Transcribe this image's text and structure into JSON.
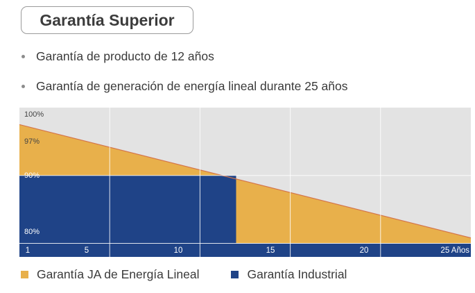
{
  "title": "Garantía Superior",
  "bullets": [
    "Garantía de producto de 12 años",
    "Garantía de generación de energía lineal durante 25 años"
  ],
  "colors": {
    "linear": "#E8B04B",
    "industrial": "#1F4387",
    "background": "#E3E3E3",
    "grid": "#FFFFFF",
    "bullet": "#8C8C8C"
  },
  "legend": [
    {
      "label": "Garantía JA de Energía Lineal",
      "color": "#E8B04B"
    },
    {
      "label": "Garantía Industrial",
      "color": "#1F4387"
    }
  ],
  "chart_data": {
    "type": "area",
    "title": "",
    "xlabel": "",
    "ylabel": "",
    "xlim": [
      0,
      25
    ],
    "ylim": [
      78,
      100
    ],
    "grid": true,
    "legend_position": "bottom",
    "x_ticks": [
      {
        "value": 1,
        "label": "1"
      },
      {
        "value": 5,
        "label": "5"
      },
      {
        "value": 10,
        "label": "10"
      },
      {
        "value": 15,
        "label": "15"
      },
      {
        "value": 20,
        "label": "20"
      },
      {
        "value": 25,
        "label": "25 Años"
      }
    ],
    "y_ticks": [
      {
        "value": 100,
        "label": "100%"
      },
      {
        "value": 97,
        "label": "97%"
      },
      {
        "value": 90,
        "label": "90%"
      },
      {
        "value": 80,
        "label": "80%"
      }
    ],
    "series": [
      {
        "name": "Garantía JA de Energía Lineal",
        "x": [
          0,
          25
        ],
        "values": [
          97.5,
          80.8
        ]
      },
      {
        "name": "Garantía Industrial",
        "x": [
          0,
          12,
          12,
          25
        ],
        "values": [
          90,
          90,
          80,
          80
        ]
      }
    ]
  }
}
